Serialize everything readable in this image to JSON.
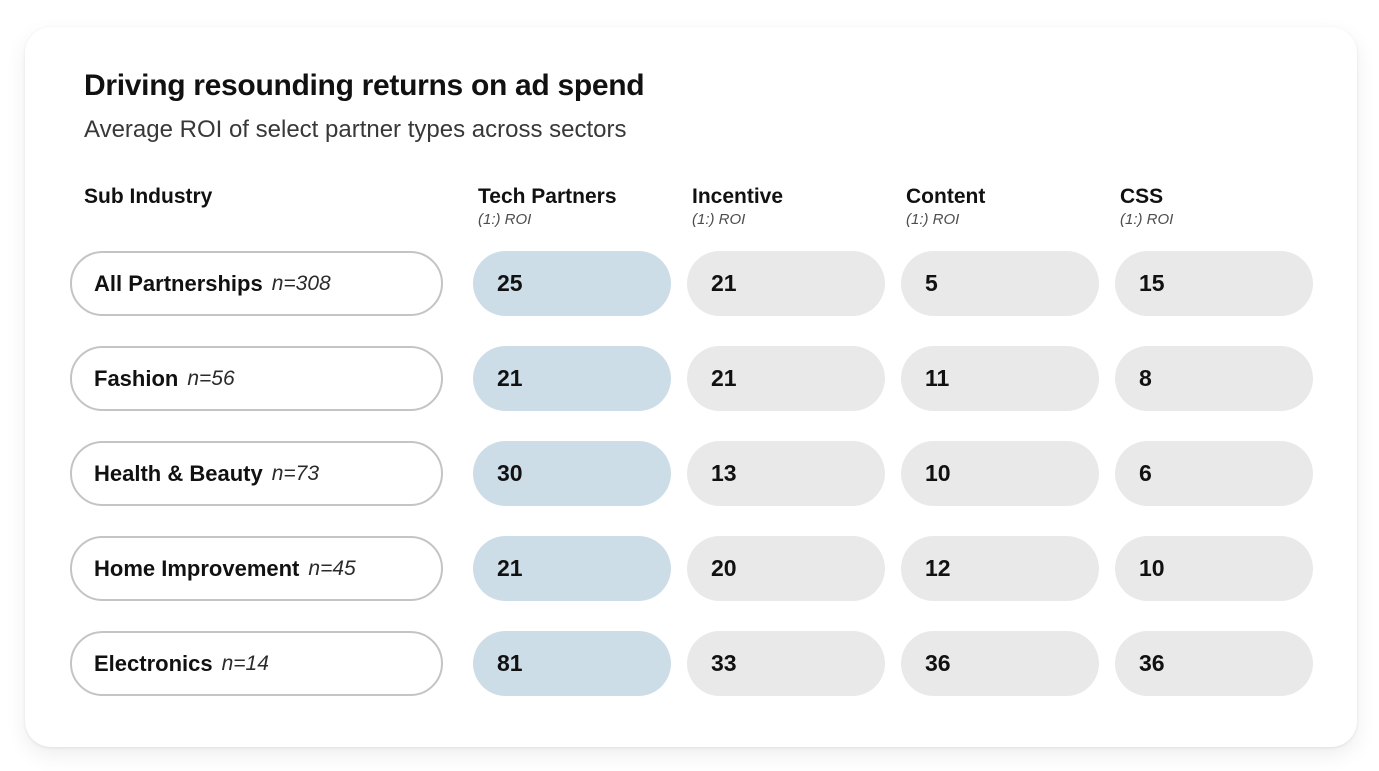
{
  "header": {
    "title": "Driving resounding returns on ad spend",
    "subtitle": "Average ROI of select partner types across sectors"
  },
  "table": {
    "row_header_label": "Sub Industry",
    "columns": [
      {
        "label": "Tech Partners",
        "sublabel": "(1:) ROI",
        "highlight": true
      },
      {
        "label": "Incentive",
        "sublabel": "(1:) ROI",
        "highlight": false
      },
      {
        "label": "Content",
        "sublabel": "(1:) ROI",
        "highlight": false
      },
      {
        "label": "CSS",
        "sublabel": "(1:) ROI",
        "highlight": false
      }
    ],
    "rows": [
      {
        "name": "All Partnerships",
        "n": "n=308",
        "values": [
          25,
          21,
          5,
          15
        ]
      },
      {
        "name": "Fashion",
        "n": "n=56",
        "values": [
          21,
          21,
          11,
          8
        ]
      },
      {
        "name": "Health & Beauty",
        "n": "n=73",
        "values": [
          30,
          13,
          10,
          6
        ]
      },
      {
        "name": "Home Improvement",
        "n": "n=45",
        "values": [
          21,
          20,
          12,
          10
        ]
      },
      {
        "name": "Electronics",
        "n": "n=14",
        "values": [
          81,
          33,
          36,
          36
        ]
      }
    ]
  },
  "colors": {
    "highlight_pill": "#ccdde8",
    "neutral_pill": "#e9e9e9",
    "label_pill_border": "#c4c4c4",
    "title_text": "#111111",
    "subtitle_text": "#383838",
    "card_background": "#ffffff"
  },
  "chart_data": {
    "type": "table",
    "title": "Driving resounding returns on ad spend",
    "subtitle": "Average ROI of select partner types across sectors",
    "row_header": "Sub Industry",
    "columns": [
      "Tech Partners (1:) ROI",
      "Incentive (1:) ROI",
      "Content (1:) ROI",
      "CSS (1:) ROI"
    ],
    "highlight_column": "Tech Partners",
    "rows": [
      {
        "label": "All Partnerships",
        "n": 308,
        "values": [
          25,
          21,
          5,
          15
        ]
      },
      {
        "label": "Fashion",
        "n": 56,
        "values": [
          21,
          21,
          11,
          8
        ]
      },
      {
        "label": "Health & Beauty",
        "n": 73,
        "values": [
          30,
          13,
          10,
          6
        ]
      },
      {
        "label": "Home Improvement",
        "n": 45,
        "values": [
          21,
          20,
          12,
          10
        ]
      },
      {
        "label": "Electronics",
        "n": 14,
        "values": [
          81,
          33,
          36,
          36
        ]
      }
    ]
  }
}
